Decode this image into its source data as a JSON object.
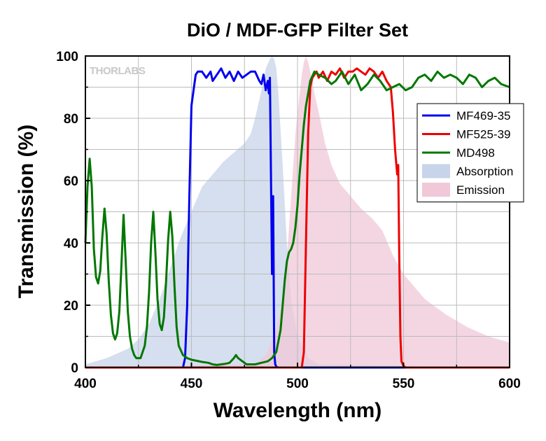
{
  "chart_data": {
    "type": "line",
    "title": "DiO / MDF-GFP Filter Set",
    "xlabel": "Wavelength (nm)",
    "ylabel": "Transmission (%)",
    "xlim": [
      400,
      600
    ],
    "ylim": [
      0,
      100
    ],
    "xticks": [
      400,
      450,
      500,
      550,
      600
    ],
    "yticks": [
      0,
      20,
      40,
      60,
      80,
      100
    ],
    "grid": true,
    "legend_position": "right",
    "watermark": "THORLABS",
    "series": [
      {
        "name": "MF469-35",
        "kind": "line",
        "color": "#0000ee",
        "x": [
          400,
          446,
          447,
          448,
          449,
          450,
          451,
          452,
          453,
          455,
          457,
          459,
          460,
          462,
          464,
          466,
          468,
          470,
          472,
          474,
          476,
          478,
          480,
          482,
          483,
          484,
          485,
          486,
          486.5,
          487,
          488,
          488.5,
          489,
          489.5,
          490,
          491,
          600
        ],
        "y": [
          0,
          0,
          3,
          20,
          55,
          84,
          89,
          94,
          95,
          95,
          93,
          95,
          92,
          94,
          96,
          93,
          95,
          92,
          95,
          93,
          94,
          95,
          95,
          92,
          91,
          94,
          89,
          92,
          88,
          93,
          30,
          55,
          5,
          1,
          0.3,
          0,
          0
        ]
      },
      {
        "name": "MF525-39",
        "kind": "line",
        "color": "#ee0000",
        "x": [
          400,
          502,
          503,
          504,
          505,
          506,
          507,
          508,
          509,
          510,
          512,
          514,
          516,
          518,
          520,
          522,
          524,
          526,
          528,
          530,
          532,
          534,
          536,
          538,
          540,
          542,
          544,
          545,
          546,
          547,
          547.5,
          548,
          548.5,
          549,
          550,
          551,
          600
        ],
        "y": [
          0,
          0,
          5,
          40,
          75,
          90,
          93,
          94,
          95,
          93,
          95,
          92,
          95,
          94,
          96,
          93,
          95,
          95,
          96,
          95,
          94,
          96,
          95,
          93,
          95,
          92,
          90,
          82,
          70,
          62,
          65,
          35,
          10,
          2,
          0.5,
          0,
          0
        ]
      },
      {
        "name": "MD498",
        "kind": "line",
        "color": "#007700",
        "x": [
          400,
          401,
          402,
          403,
          404,
          405,
          406,
          407,
          408,
          409,
          410,
          411,
          412,
          413,
          414,
          415,
          416,
          417,
          418,
          419,
          420,
          421,
          422,
          423,
          424,
          426,
          428,
          429,
          430,
          431,
          432,
          433,
          434,
          435,
          436,
          437,
          438,
          439,
          440,
          441,
          442,
          443,
          444,
          446,
          448,
          450,
          455,
          458,
          460,
          462,
          464,
          466,
          468,
          470,
          471,
          472,
          474,
          476,
          480,
          483,
          486,
          488,
          490,
          492,
          493,
          494,
          495,
          496,
          497,
          498,
          499,
          500,
          501,
          502,
          503,
          504,
          505,
          506,
          508,
          510,
          513,
          516,
          518,
          521,
          524,
          527,
          530,
          533,
          536,
          539,
          542,
          545,
          548,
          551,
          554,
          557,
          560,
          563,
          566,
          569,
          572,
          575,
          578,
          581,
          584,
          587,
          590,
          593,
          596,
          600
        ],
        "y": [
          40,
          58,
          67,
          58,
          38,
          29,
          27,
          31,
          42,
          51,
          43,
          28,
          17,
          11,
          9,
          11,
          18,
          33,
          49,
          34,
          18,
          10,
          6,
          4,
          3,
          3,
          7,
          13,
          24,
          40,
          50,
          37,
          22,
          14,
          12,
          16,
          27,
          41,
          50,
          42,
          26,
          13,
          7,
          4,
          3,
          2.5,
          1.8,
          1.5,
          1,
          0.8,
          1,
          1.2,
          1.5,
          3,
          4,
          3,
          2,
          1,
          1,
          1.5,
          2,
          3,
          5,
          12,
          20,
          28,
          34,
          37,
          38,
          40,
          45,
          52,
          62,
          70,
          78,
          84,
          88,
          92,
          95,
          94,
          93,
          91,
          92,
          95,
          91,
          94,
          89,
          91,
          94,
          92,
          89,
          90,
          91,
          89,
          90,
          93,
          94,
          92,
          95,
          93,
          94,
          93,
          91,
          94,
          93,
          90,
          92,
          93,
          91,
          90
        ]
      },
      {
        "name": "Absorption",
        "kind": "area",
        "color": "#c8d4ea",
        "x": [
          400,
          410,
          420,
          425,
          430,
          435,
          440,
          445,
          450,
          455,
          460,
          465,
          470,
          475,
          478,
          480,
          482,
          484,
          485,
          487,
          488,
          489,
          490,
          491,
          493,
          495,
          497,
          500,
          505,
          510,
          600
        ],
        "y": [
          1,
          3,
          6,
          9,
          14,
          22,
          32,
          42,
          50,
          58,
          62,
          66,
          69,
          72,
          75,
          80,
          86,
          92,
          96,
          99,
          100,
          99,
          96,
          88,
          65,
          40,
          22,
          10,
          3,
          1,
          0
        ]
      },
      {
        "name": "Emission",
        "kind": "area",
        "color": "#f0c8d8",
        "x": [
          400,
          480,
          485,
          490,
          493,
          495,
          497,
          499,
          501,
          502,
          503,
          504,
          505,
          506,
          507,
          508,
          510,
          513,
          516,
          520,
          525,
          530,
          535,
          540,
          545,
          550,
          560,
          570,
          580,
          590,
          600
        ],
        "y": [
          0,
          1,
          4,
          12,
          22,
          35,
          55,
          75,
          88,
          94,
          98,
          100,
          98,
          95,
          92,
          88,
          82,
          72,
          65,
          59,
          55,
          51,
          48,
          44,
          36,
          30,
          22,
          17,
          13,
          10,
          8
        ]
      }
    ]
  }
}
